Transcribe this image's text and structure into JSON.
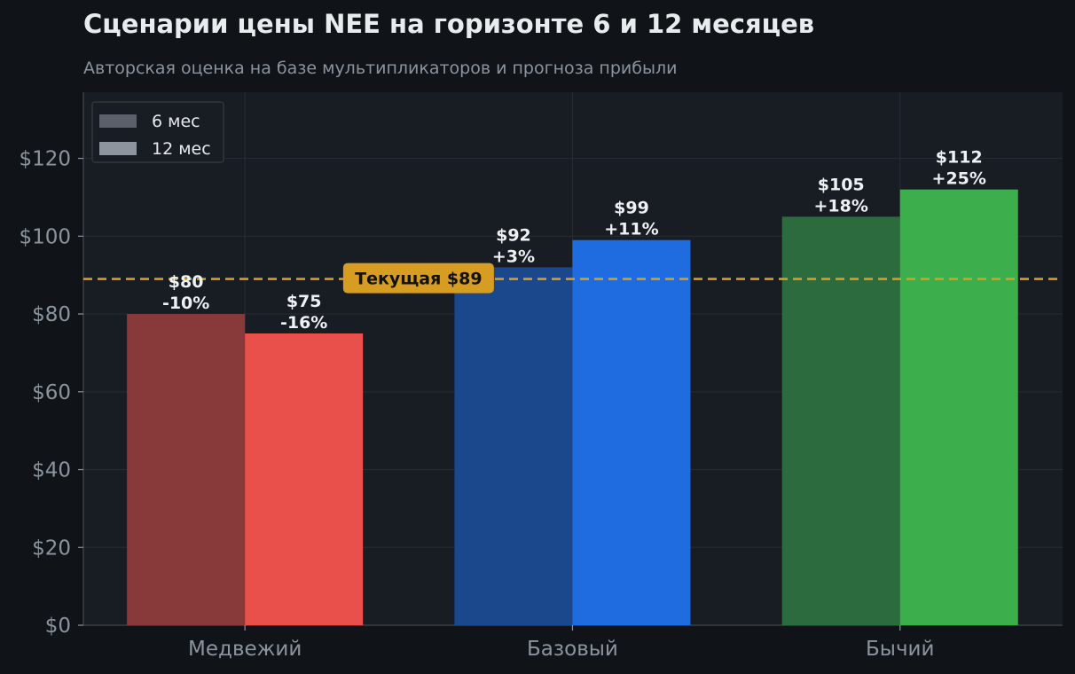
{
  "title": "Сценарии цены NEE на горизонте 6 и 12 месяцев",
  "subtitle": "Авторская оценка на базе мультипликаторов и прогноза прибыли",
  "chart_data": {
    "type": "bar",
    "categories": [
      "Медвежий",
      "Базовый",
      "Бычий"
    ],
    "series": [
      {
        "name": "6 мес",
        "values": [
          80,
          92,
          105
        ],
        "price_labels": [
          "$80",
          "$92",
          "$105"
        ],
        "change_labels": [
          "-10%",
          "+3%",
          "+18%"
        ],
        "colors": [
          "#883a3a",
          "#1b488c",
          "#2b6b3d"
        ]
      },
      {
        "name": "12 мес",
        "values": [
          75,
          99,
          112
        ],
        "price_labels": [
          "$75",
          "$99",
          "$112"
        ],
        "change_labels": [
          "-16%",
          "+11%",
          "+25%"
        ],
        "colors": [
          "#e9504b",
          "#1f6ce0",
          "#3cae4b"
        ]
      }
    ],
    "legend_colors": [
      "#5b5f69",
      "#8d949e"
    ],
    "ylim": [
      0,
      137
    ],
    "yticks": [
      0,
      20,
      40,
      60,
      80,
      100,
      120
    ],
    "ytick_labels": [
      "$0",
      "$20",
      "$40",
      "$60",
      "$80",
      "$100",
      "$120"
    ],
    "reference_line": {
      "value": 89,
      "label": "Текущая $89",
      "color": "#d79c22"
    },
    "grid": true,
    "legend_position": "top-left"
  }
}
